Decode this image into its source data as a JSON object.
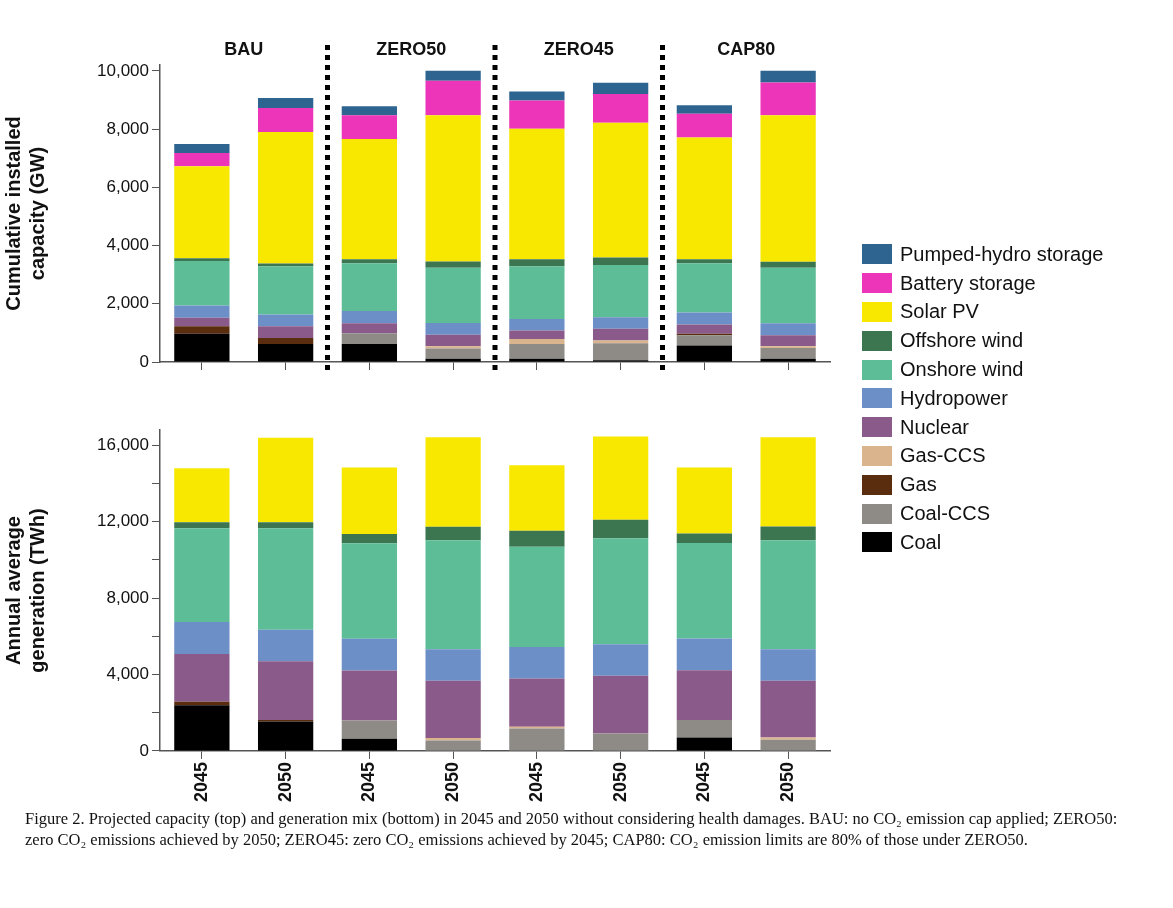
{
  "chart_data": [
    {
      "type": "bar",
      "stacked": true,
      "ylabel": "Cumulative installed capacity (GW)",
      "categories": [
        "2045",
        "2050",
        "2045",
        "2050",
        "2045",
        "2050",
        "2045",
        "2050"
      ],
      "ylim": [
        0,
        10200
      ],
      "yticks": [
        0,
        {
          "value": 2000,
          "label": "2,000"
        },
        {
          "value": 4000,
          "label": "4,000"
        },
        {
          "value": 6000,
          "label": "6,000"
        },
        {
          "value": 8000,
          "label": "8,000"
        },
        {
          "value": 10000,
          "label": "10,000"
        }
      ],
      "grid": false,
      "legend": "right",
      "tick_labels": "y",
      "annotations": [
        "BAU",
        "ZERO50",
        "ZERO45",
        "CAP80"
      ],
      "series": [
        {
          "name": "Coal",
          "color": "#000000",
          "values": [
            970,
            620,
            620,
            110,
            110,
            60,
            570,
            110
          ]
        },
        {
          "name": "Coal-CCS",
          "color": "#8e8b86",
          "values": [
            0,
            0,
            370,
            350,
            510,
            580,
            350,
            370
          ]
        },
        {
          "name": "Gas",
          "color": "#5a2d0f",
          "values": [
            260,
            200,
            0,
            0,
            0,
            0,
            50,
            0
          ]
        },
        {
          "name": "Gas-CCS",
          "color": "#d9b48c",
          "values": [
            0,
            0,
            0,
            80,
            170,
            100,
            0,
            60
          ]
        },
        {
          "name": "Nuclear",
          "color": "#8a5a8a",
          "values": [
            290,
            410,
            340,
            400,
            290,
            400,
            320,
            380
          ]
        },
        {
          "name": "Hydropower",
          "color": "#6b8fc6",
          "values": [
            420,
            400,
            420,
            400,
            400,
            400,
            410,
            410
          ]
        },
        {
          "name": "Onshore wind",
          "color": "#5dbd96",
          "values": [
            1530,
            1660,
            1640,
            1900,
            1810,
            1790,
            1690,
            1910
          ]
        },
        {
          "name": "Offshore wind",
          "color": "#3c7650",
          "values": [
            90,
            90,
            140,
            210,
            240,
            260,
            140,
            200
          ]
        },
        {
          "name": "Solar PV",
          "color": "#f8e800",
          "values": [
            3160,
            4520,
            4130,
            5020,
            4480,
            4630,
            4180,
            5030
          ]
        },
        {
          "name": "Battery storage",
          "color": "#ec35b8",
          "values": [
            460,
            820,
            810,
            1190,
            970,
            980,
            820,
            1130
          ]
        },
        {
          "name": "Pumped-hydro storage",
          "color": "#2e6490",
          "values": [
            310,
            350,
            310,
            340,
            310,
            390,
            290,
            400
          ]
        }
      ]
    },
    {
      "type": "bar",
      "stacked": true,
      "ylabel": "Annual average generation (TWh)",
      "categories": [
        "2045",
        "2050",
        "2045",
        "2050",
        "2045",
        "2050",
        "2045",
        "2050"
      ],
      "ylim": [
        0,
        16800
      ],
      "yticks": [
        0,
        {
          "value": 2000,
          "label": null
        },
        {
          "value": 4000,
          "label": "4,000"
        },
        {
          "value": 6000,
          "label": null
        },
        {
          "value": 8000,
          "label": "8,000"
        },
        {
          "value": 10000,
          "label": null
        },
        {
          "value": 12000,
          "label": "12,000"
        },
        {
          "value": 14000,
          "label": null
        },
        {
          "value": 16000,
          "label": "16,000"
        }
      ],
      "grid": false,
      "annotations": [
        "Figure 2. Projected capacity (top) and generation mix (bottom) in 2045 and 2050 without considering health damages. BAU: no CO₂ emission cap applied; ZERO50: zero CO₂ emissions achieved by 2050; ZERO45: zero CO₂ emissions achieved by 2045; CAP80: CO₂ emission limits are 80% of those under ZERO50."
      ],
      "series": [
        {
          "color": "#000000",
          "values": [
            2390,
            1540,
            640,
            0,
            0,
            0,
            700,
            0
          ]
        },
        {
          "color": "#8e8b86",
          "values": [
            0,
            0,
            960,
            550,
            1180,
            920,
            920,
            590
          ]
        },
        {
          "color": "#5a2d0f",
          "values": [
            180,
            80,
            0,
            0,
            0,
            0,
            0,
            0
          ]
        },
        {
          "color": "#d9b48c",
          "values": [
            0,
            0,
            0,
            130,
            90,
            0,
            0,
            110
          ]
        },
        {
          "color": "#8a5a8a",
          "values": [
            2510,
            3070,
            2610,
            3000,
            2520,
            3020,
            2610,
            2980
          ]
        },
        {
          "color": "#6b8fc6",
          "values": [
            1670,
            1650,
            1660,
            1650,
            1650,
            1650,
            1660,
            1650
          ]
        },
        {
          "color": "#5dbd96",
          "values": [
            4910,
            5320,
            5000,
            5700,
            5250,
            5540,
            5000,
            5700
          ]
        },
        {
          "color": "#3c7650",
          "values": [
            310,
            310,
            480,
            700,
            840,
            970,
            490,
            720
          ]
        },
        {
          "color": "#f8e800",
          "values": [
            2830,
            4430,
            3490,
            4690,
            3420,
            4360,
            3460,
            4670
          ]
        }
      ]
    }
  ]
}
